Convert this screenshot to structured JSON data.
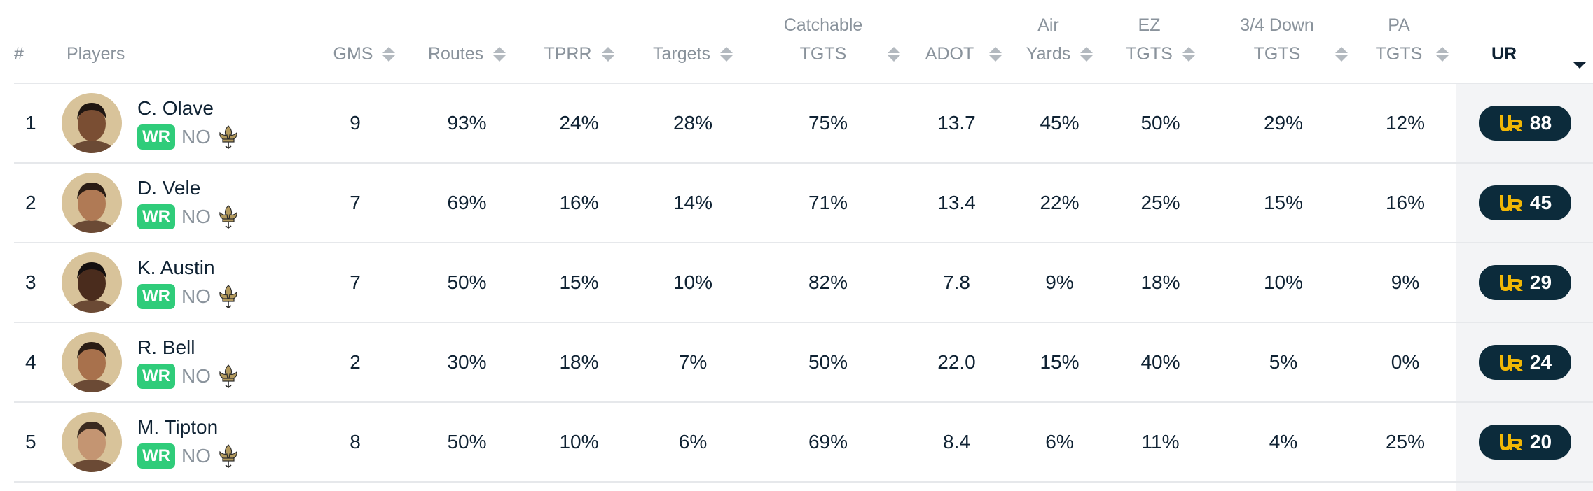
{
  "table": {
    "headers": {
      "rank": "#",
      "players": "Players",
      "gms": "GMS",
      "routes": "Routes",
      "tprr": "TPRR",
      "targets": "Targets",
      "catchable_l1": "Catchable",
      "catchable_l2": "TGTS",
      "adot": "ADOT",
      "air_l1": "Air",
      "air_l2": "Yards",
      "ez_l1": "EZ",
      "ez_l2": "TGTS",
      "down_l1": "3/4 Down",
      "down_l2": "TGTS",
      "pa_l1": "PA",
      "pa_l2": "TGTS",
      "ur": "UR"
    },
    "rows": [
      {
        "rank": "1",
        "name": "C. Olave",
        "pos": "WR",
        "team": "NO",
        "gms": "9",
        "routes": "93%",
        "tprr": "24%",
        "targets": "28%",
        "catchable": "75%",
        "adot": "13.7",
        "air": "45%",
        "ez": "50%",
        "down": "29%",
        "pa": "12%",
        "ur": "88"
      },
      {
        "rank": "2",
        "name": "D. Vele",
        "pos": "WR",
        "team": "NO",
        "gms": "7",
        "routes": "69%",
        "tprr": "16%",
        "targets": "14%",
        "catchable": "71%",
        "adot": "13.4",
        "air": "22%",
        "ez": "25%",
        "down": "15%",
        "pa": "16%",
        "ur": "45"
      },
      {
        "rank": "3",
        "name": "K. Austin",
        "pos": "WR",
        "team": "NO",
        "gms": "7",
        "routes": "50%",
        "tprr": "15%",
        "targets": "10%",
        "catchable": "82%",
        "adot": "7.8",
        "air": "9%",
        "ez": "18%",
        "down": "10%",
        "pa": "9%",
        "ur": "29"
      },
      {
        "rank": "4",
        "name": "R. Bell",
        "pos": "WR",
        "team": "NO",
        "gms": "2",
        "routes": "30%",
        "tprr": "18%",
        "targets": "7%",
        "catchable": "50%",
        "adot": "22.0",
        "air": "15%",
        "ez": "40%",
        "down": "5%",
        "pa": "0%",
        "ur": "24"
      },
      {
        "rank": "5",
        "name": "M. Tipton",
        "pos": "WR",
        "team": "NO",
        "gms": "8",
        "routes": "50%",
        "tprr": "10%",
        "targets": "6%",
        "catchable": "69%",
        "adot": "8.4",
        "air": "6%",
        "ez": "11%",
        "down": "4%",
        "pa": "25%",
        "ur": "20"
      }
    ]
  },
  "icons": {
    "sort": "sort-arrows-icon",
    "team_logo": "fleur-de-lis-icon",
    "ur_logo": "ur-logo-icon"
  },
  "colors": {
    "position_badge": "#2fcc7a",
    "ur_badge": "#0c2b3b",
    "ur_logo": "#f2b705",
    "team_logo": "#b39a5e",
    "avatar_bg": "#d8c39a"
  }
}
